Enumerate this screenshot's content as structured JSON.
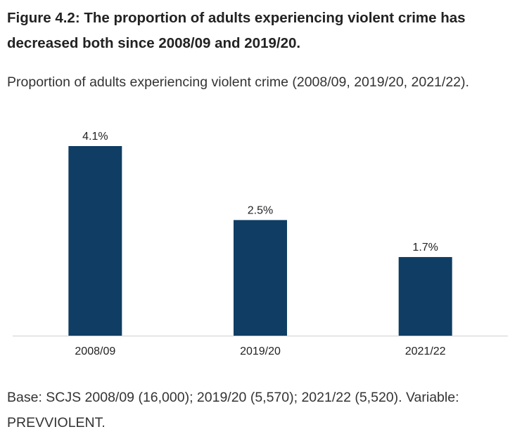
{
  "figure": {
    "title": "Figure 4.2: The proportion of adults experiencing violent crime has decreased both since 2008/09 and 2019/20.",
    "subtitle": "Proportion of adults experiencing violent crime (2008/09, 2019/20, 2021/22).",
    "footnote": "Base: SCJS 2008/09 (16,000); 2019/20 (5,570); 2021/22 (5,520). Variable: PREVVIOLENT."
  },
  "chart_data": {
    "type": "bar",
    "categories": [
      "2008/09",
      "2019/20",
      "2021/22"
    ],
    "values": [
      4.1,
      2.5,
      1.7
    ],
    "data_labels": [
      "4.1%",
      "2.5%",
      "1.7%"
    ],
    "title": "",
    "xlabel": "",
    "ylabel": "",
    "ylim": [
      0,
      4.1
    ],
    "grid": false,
    "legend": "none",
    "bar_color": "#0f3d63",
    "axis_color": "#d0d0d0"
  }
}
